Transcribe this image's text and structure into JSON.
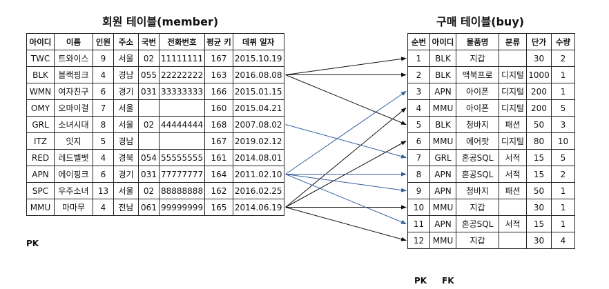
{
  "member_table": {
    "title": "회원 테이블(member)",
    "headers": [
      "아이디",
      "이름",
      "인원",
      "주소",
      "국번",
      "전화번호",
      "평균 키",
      "데뷔 일자"
    ],
    "rows": [
      [
        "TWC",
        "트와이스",
        "9",
        "서울",
        "02",
        "11111111",
        "167",
        "2015.10.19"
      ],
      [
        "BLK",
        "블랙핑크",
        "4",
        "경남",
        "055",
        "22222222",
        "163",
        "2016.08.08"
      ],
      [
        "WMN",
        "여자친구",
        "6",
        "경기",
        "031",
        "33333333",
        "166",
        "2015.01.15"
      ],
      [
        "OMY",
        "오마이걸",
        "7",
        "서울",
        "",
        "",
        "160",
        "2015.04.21"
      ],
      [
        "GRL",
        "소녀시대",
        "8",
        "서울",
        "02",
        "44444444",
        "168",
        "2007.08.02"
      ],
      [
        "ITZ",
        "잇지",
        "5",
        "경남",
        "",
        "",
        "167",
        "2019.02.12"
      ],
      [
        "RED",
        "레드벨벳",
        "4",
        "경북",
        "054",
        "55555555",
        "161",
        "2014.08.01"
      ],
      [
        "APN",
        "에이핑크",
        "6",
        "경기",
        "031",
        "77777777",
        "164",
        "2011.02.10"
      ],
      [
        "SPC",
        "우주소녀",
        "13",
        "서울",
        "02",
        "88888888",
        "162",
        "2016.02.25"
      ],
      [
        "MMU",
        "마마무",
        "4",
        "전남",
        "061",
        "99999999",
        "165",
        "2014.06.19"
      ]
    ],
    "pk_label": "PK"
  },
  "buy_table": {
    "title": "구매 테이블(buy)",
    "headers": [
      "순번",
      "아이디",
      "물품명",
      "분류",
      "단가",
      "수량"
    ],
    "rows": [
      [
        "1",
        "BLK",
        "지갑",
        "",
        "30",
        "2"
      ],
      [
        "2",
        "BLK",
        "맥북프로",
        "디지털",
        "1000",
        "1"
      ],
      [
        "3",
        "APN",
        "아이폰",
        "디지털",
        "200",
        "1"
      ],
      [
        "4",
        "MMU",
        "아이폰",
        "디지털",
        "200",
        "5"
      ],
      [
        "5",
        "BLK",
        "청바지",
        "패션",
        "50",
        "3"
      ],
      [
        "6",
        "MMU",
        "에어팟",
        "디지털",
        "80",
        "10"
      ],
      [
        "7",
        "GRL",
        "혼공SQL",
        "서적",
        "15",
        "5"
      ],
      [
        "8",
        "APN",
        "혼공SQL",
        "서적",
        "15",
        "2"
      ],
      [
        "9",
        "APN",
        "청바지",
        "패션",
        "50",
        "1"
      ],
      [
        "10",
        "MMU",
        "지갑",
        "",
        "30",
        "1"
      ],
      [
        "11",
        "APN",
        "혼공SQL",
        "서적",
        "15",
        "1"
      ],
      [
        "12",
        "MMU",
        "지갑",
        "",
        "30",
        "4"
      ]
    ],
    "pk_label": "PK",
    "fk_label": "FK"
  },
  "arrow_colors": {
    "black": "#111111",
    "blue": "#2f5f9e"
  }
}
